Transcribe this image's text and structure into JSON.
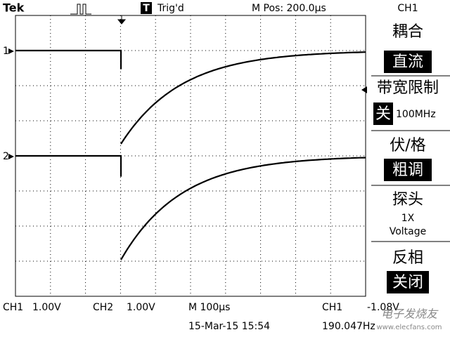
{
  "header": {
    "brand": "Tek",
    "trigger_icon": "T",
    "trigger_status": "Trig'd",
    "horizontal_position": "M Pos: 200.0µs",
    "selected_channel": "CH1"
  },
  "markers": {
    "ch1": "1",
    "ch2": "2"
  },
  "menu": {
    "coupling": {
      "label": "耦合",
      "value": "直流"
    },
    "bandwidth_limit": {
      "label": "带宽限制",
      "value": "关",
      "bandwidth": "100MHz"
    },
    "volts_per_div": {
      "label": "伏/格",
      "value": "粗调"
    },
    "probe": {
      "label": "探头",
      "attenuation": "1X",
      "type": "Voltage"
    },
    "invert": {
      "label": "反相",
      "value": "关闭"
    }
  },
  "status": {
    "ch1": "CH1",
    "ch1_scale": "1.00V",
    "ch2": "CH2",
    "ch2_scale": "1.00V",
    "time_base": "M 100µs",
    "trigger_source": "CH1",
    "trigger_level": "-1.08V",
    "date_time": "15-Mar-15 15:54",
    "frequency": "190.047Hz"
  },
  "watermark": {
    "name": "电子发烧友",
    "url": "www.elecfans.com"
  }
}
